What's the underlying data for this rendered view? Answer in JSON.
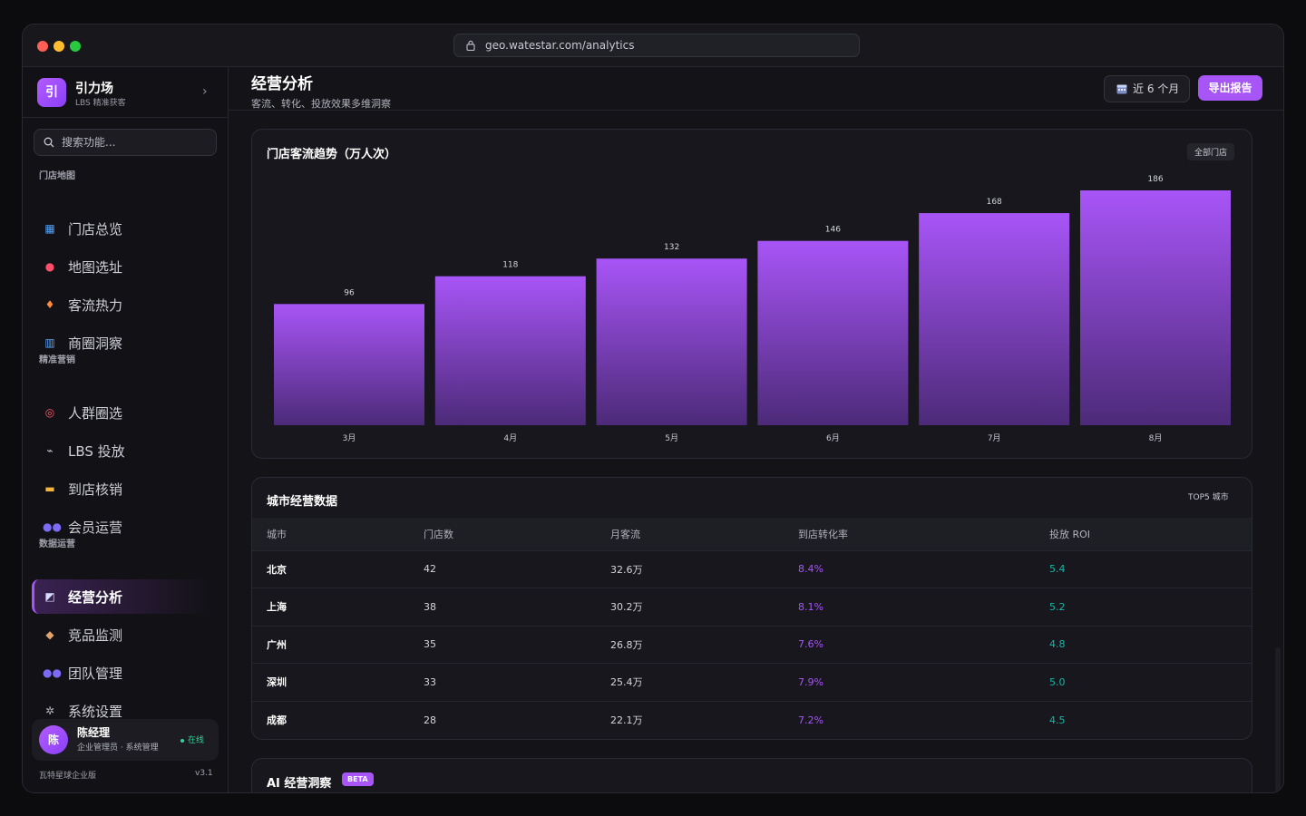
{
  "browser": {
    "url": "geo.watestar.com/analytics"
  },
  "brand": {
    "logo": "引",
    "name": "引力场",
    "subtitle": "LBS 精准获客"
  },
  "search": {
    "placeholder": "搜索功能..."
  },
  "sidebar": {
    "sections": [
      {
        "label": "门店地图"
      },
      {
        "label": "精准营销"
      },
      {
        "label": "数据运营"
      }
    ],
    "items": [
      {
        "label": "门店总览",
        "icon": "map-icon"
      },
      {
        "label": "地图选址",
        "icon": "pin-icon"
      },
      {
        "label": "客流热力",
        "icon": "flame-icon"
      },
      {
        "label": "商圈洞察",
        "icon": "city-icon"
      },
      {
        "label": "人群圈选",
        "icon": "target-icon"
      },
      {
        "label": "LBS 投放",
        "icon": "satellite-icon"
      },
      {
        "label": "到店核销",
        "icon": "ticket-icon"
      },
      {
        "label": "会员运营",
        "icon": "people-icon"
      },
      {
        "label": "经营分析",
        "icon": "chart-icon",
        "active": true
      },
      {
        "label": "竞品监测",
        "icon": "detective-icon"
      },
      {
        "label": "团队管理",
        "icon": "team-icon"
      },
      {
        "label": "系统设置",
        "icon": "gear-icon"
      }
    ]
  },
  "user": {
    "avatar": "陈",
    "name": "陈经理",
    "role": "企业管理员 · 系统管理",
    "status": "在线"
  },
  "footer": {
    "edition": "瓦特星球企业版",
    "version": "v3.1"
  },
  "page": {
    "title": "经营分析",
    "subtitle": "客流、转化、投放效果多维洞察",
    "range_label": "近 6 个月",
    "export_label": "导出报告"
  },
  "traffic_card": {
    "title": "门店客流趋势（万人次）",
    "filter": "全部门店"
  },
  "chart_data": {
    "type": "bar",
    "title": "门店客流趋势（万人次）",
    "categories": [
      "3月",
      "4月",
      "5月",
      "6月",
      "7月",
      "8月"
    ],
    "values": [
      96,
      118,
      132,
      146,
      168,
      186
    ],
    "ylim": [
      0,
      186
    ],
    "grid": false,
    "color": "#a855f7"
  },
  "city_card": {
    "title": "城市经营数据",
    "tag": "TOP5 城市",
    "columns": [
      "城市",
      "门店数",
      "月客流",
      "到店转化率",
      "投放 ROI"
    ],
    "rows": [
      [
        "北京",
        "42",
        "32.6万",
        "8.4%",
        "5.4"
      ],
      [
        "上海",
        "38",
        "30.2万",
        "8.1%",
        "5.2"
      ],
      [
        "广州",
        "35",
        "26.8万",
        "7.6%",
        "4.8"
      ],
      [
        "深圳",
        "33",
        "25.4万",
        "7.9%",
        "5.0"
      ],
      [
        "成都",
        "28",
        "22.1万",
        "7.2%",
        "4.5"
      ]
    ]
  },
  "ai_card": {
    "title": "AI 经营洞察",
    "badge": "BETA"
  },
  "colors": {
    "accent": "#a855f7",
    "teal": "#14b8a6",
    "online": "#34d399"
  }
}
